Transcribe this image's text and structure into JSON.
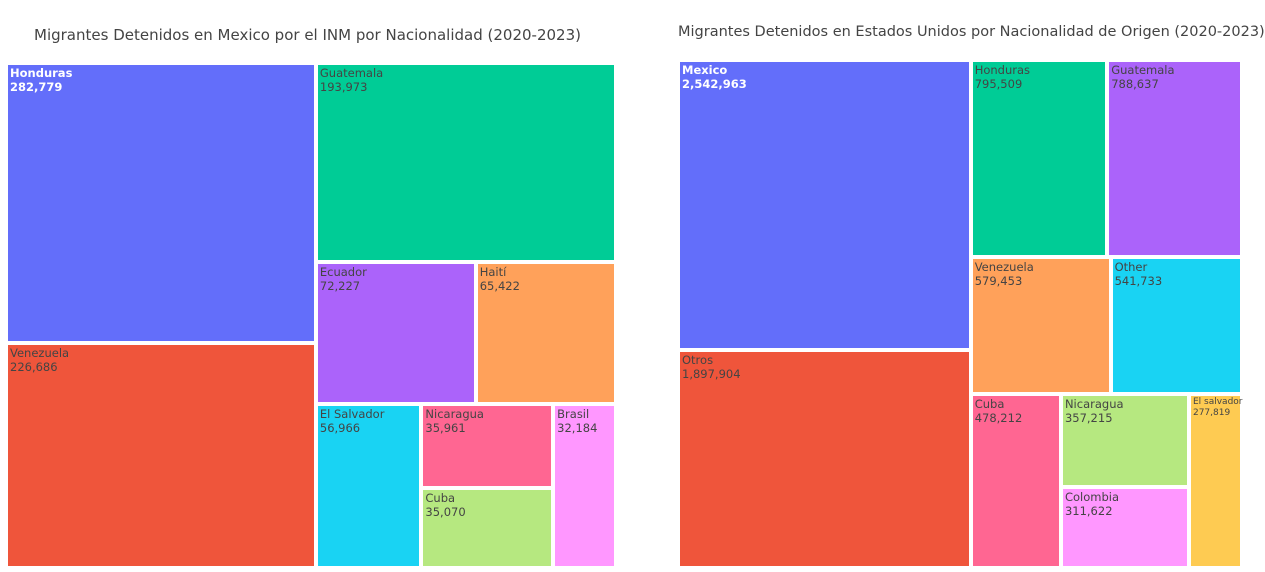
{
  "chart_data": [
    {
      "type": "treemap",
      "title": "Migrantes Detenidos en Mexico por el INM por Nacionalidad (2020-2023)",
      "categories": [
        "Honduras",
        "Guatemala",
        "Venezuela",
        "Ecuador",
        "Haití",
        "El Salvador",
        "Nicaragua",
        "Cuba",
        "Brasil"
      ],
      "values": [
        282779,
        193973,
        226686,
        72227,
        65422,
        56966,
        35961,
        35070,
        32184
      ],
      "value_labels": [
        "282,779",
        "193,973",
        "226,686",
        "72,227",
        "65,422",
        "56,966",
        "35,961",
        "35,070",
        "32,184"
      ],
      "colors": [
        "#636efa",
        "#00cc96",
        "#ef553b",
        "#ab63fa",
        "#ffa15a",
        "#19d3f3",
        "#ff6692",
        "#b6e880",
        "#ff97ff"
      ]
    },
    {
      "type": "treemap",
      "title": "Migrantes Detenidos en Estados Unidos por Nacionalidad de Origen (2020-2023)",
      "categories": [
        "Mexico",
        "Otros",
        "Honduras",
        "Guatemala",
        "Venezuela",
        "Other",
        "Cuba",
        "Nicaragua",
        "Colombia",
        "El salvador"
      ],
      "values": [
        2542963,
        1897904,
        795509,
        788637,
        579453,
        541733,
        478212,
        357215,
        311622,
        277819
      ],
      "value_labels": [
        "2,542,963",
        "1,897,904",
        "795,509",
        "788,637",
        "579,453",
        "541,733",
        "478,212",
        "357,215",
        "311,622",
        "277,819"
      ],
      "colors": [
        "#636efa",
        "#ef553b",
        "#00cc96",
        "#ab63fa",
        "#ffa15a",
        "#19d3f3",
        "#ff6692",
        "#b6e880",
        "#ff97ff",
        "#fecb52"
      ]
    }
  ]
}
